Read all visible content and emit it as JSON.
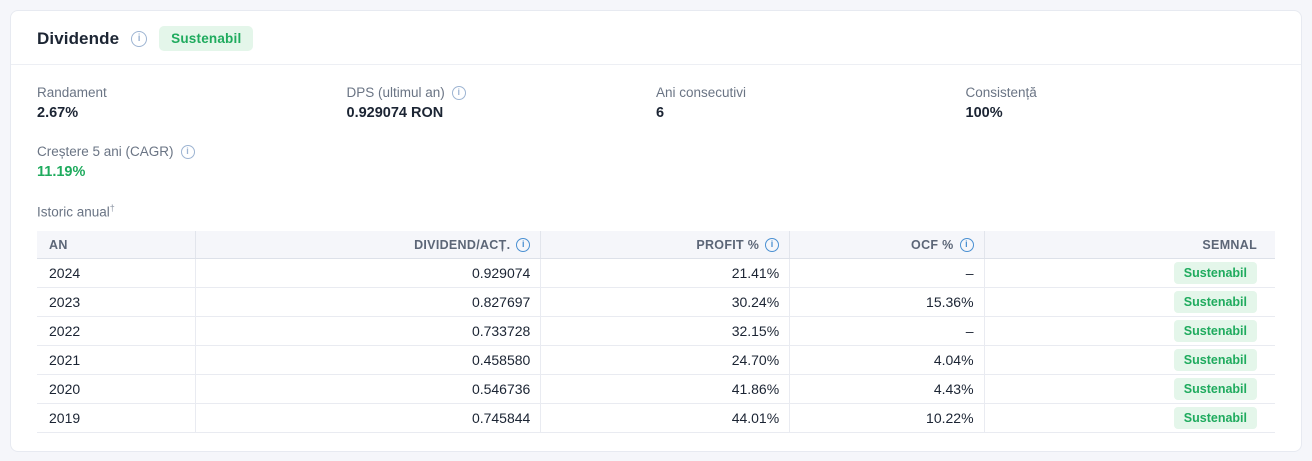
{
  "card": {
    "title": "Dividende",
    "badge": "Sustenabil"
  },
  "stats": [
    {
      "label": "Randament",
      "value": "2.67%"
    },
    {
      "label": "DPS (ultimul an)",
      "value": "0.929074 RON"
    },
    {
      "label": "Ani consecutivi",
      "value": "6"
    },
    {
      "label": "Consistență",
      "value": "100%"
    }
  ],
  "growth": {
    "label": "Creștere 5 ani (CAGR)",
    "value": "11.19%"
  },
  "history": {
    "label": "Istoric anual",
    "marker": "†"
  },
  "info_icon_glyph": "i",
  "table": {
    "columns": [
      {
        "label": "AN"
      },
      {
        "label": "DIVIDEND/ACȚ."
      },
      {
        "label": "PROFIT %"
      },
      {
        "label": "OCF %"
      },
      {
        "label": "SEMNAL"
      }
    ],
    "rows": [
      {
        "an": "2024",
        "dividend": "0.929074",
        "profit": "21.41%",
        "ocf": "–",
        "semnal": "Sustenabil"
      },
      {
        "an": "2023",
        "dividend": "0.827697",
        "profit": "30.24%",
        "ocf": "15.36%",
        "semnal": "Sustenabil"
      },
      {
        "an": "2022",
        "dividend": "0.733728",
        "profit": "32.15%",
        "ocf": "–",
        "semnal": "Sustenabil"
      },
      {
        "an": "2021",
        "dividend": "0.458580",
        "profit": "24.70%",
        "ocf": "4.04%",
        "semnal": "Sustenabil"
      },
      {
        "an": "2020",
        "dividend": "0.546736",
        "profit": "41.86%",
        "ocf": "4.43%",
        "semnal": "Sustenabil"
      },
      {
        "an": "2019",
        "dividend": "0.745844",
        "profit": "44.01%",
        "ocf": "10.22%",
        "semnal": "Sustenabil"
      }
    ]
  },
  "colors": {
    "accent_green": "#1fab5e",
    "badge_background": "#e4f6ea",
    "info_icon_blue": "#4a90d2",
    "info_icon_muted": "#9db4d2",
    "card_background": "#ffffff",
    "page_background": "#f5f6fa",
    "table_header_background": "#f5f6fa"
  }
}
